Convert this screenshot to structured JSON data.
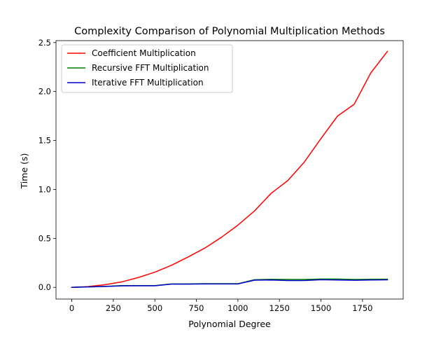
{
  "chart_data": {
    "type": "line",
    "title": "Complexity Comparison of Polynomial Multiplication Methods",
    "xlabel": "Polynomial Degree",
    "ylabel": "Time (s)",
    "xlim": [
      -95,
      1995
    ],
    "ylim": [
      -0.12,
      2.52
    ],
    "x_ticks": [
      0,
      250,
      500,
      750,
      1000,
      1250,
      1500,
      1750
    ],
    "x_tick_labels": [
      "0",
      "250",
      "500",
      "750",
      "1000",
      "1250",
      "1500",
      "1750"
    ],
    "y_ticks": [
      0.0,
      0.5,
      1.0,
      1.5,
      2.0,
      2.5
    ],
    "y_tick_labels": [
      "0.0",
      "0.5",
      "1.0",
      "1.5",
      "2.0",
      "2.5"
    ],
    "grid": false,
    "legend_position": "top-left",
    "x": [
      0,
      100,
      200,
      300,
      400,
      500,
      600,
      700,
      800,
      900,
      1000,
      1100,
      1200,
      1300,
      1400,
      1500,
      1600,
      1700,
      1800,
      1900
    ],
    "series": [
      {
        "name": "Coefficient Multiplication",
        "color": "#ff0000",
        "values": [
          0.0,
          0.008,
          0.027,
          0.055,
          0.1,
          0.155,
          0.225,
          0.31,
          0.4,
          0.51,
          0.635,
          0.78,
          0.96,
          1.09,
          1.28,
          1.52,
          1.75,
          1.87,
          2.19,
          2.41
        ]
      },
      {
        "name": "Recursive FFT Multiplication",
        "color": "#008000",
        "values": [
          0.0,
          0.005,
          0.01,
          0.018,
          0.018,
          0.018,
          0.035,
          0.035,
          0.037,
          0.037,
          0.037,
          0.078,
          0.082,
          0.08,
          0.08,
          0.085,
          0.085,
          0.08,
          0.083,
          0.083
        ]
      },
      {
        "name": "Iterative FFT Multiplication",
        "color": "#0000cc",
        "values": [
          0.0,
          0.004,
          0.009,
          0.015,
          0.016,
          0.016,
          0.033,
          0.033,
          0.035,
          0.035,
          0.035,
          0.073,
          0.075,
          0.07,
          0.07,
          0.078,
          0.075,
          0.072,
          0.075,
          0.077
        ]
      }
    ]
  }
}
